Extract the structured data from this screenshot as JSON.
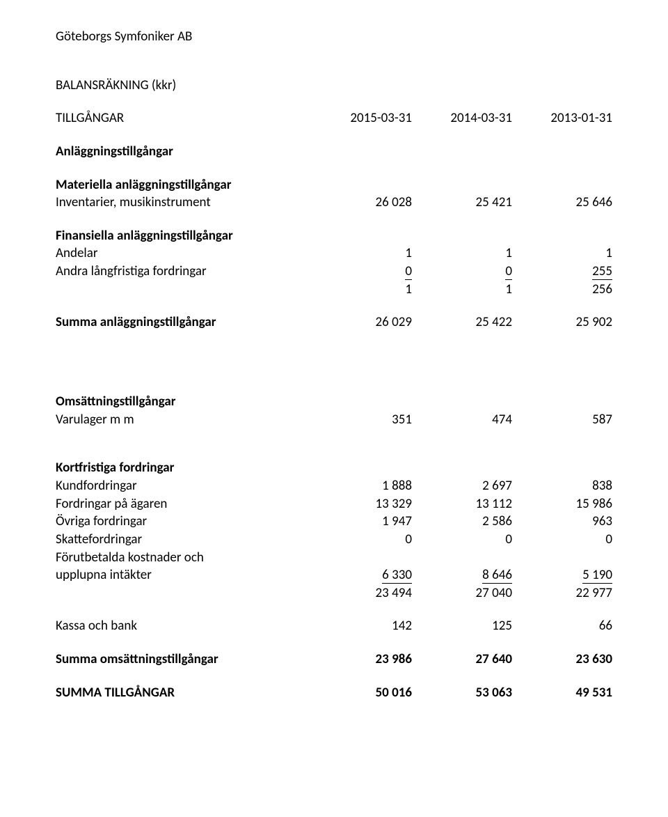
{
  "company": "Göteborgs Symfoniker AB",
  "report_title": "BALANSRÄKNING (kkr)",
  "headers": {
    "section": "TILLGÅNGAR",
    "col1": "2015-03-31",
    "col2": "2014-03-31",
    "col3": "2013-01-31"
  },
  "anlaggning": {
    "heading": "Anläggningstillgångar",
    "materiella_heading": "Materiella anläggningstillgångar",
    "inventarier_label": "Inventarier, musikinstrument",
    "inventarier": {
      "c1": "26 028",
      "c2": "25 421",
      "c3": "25 646"
    },
    "finansiella_heading": "Finansiella anläggningstillgångar",
    "andelar_label": "Andelar",
    "andelar": {
      "c1": "1",
      "c2": "1",
      "c3": "1"
    },
    "andra_label": "Andra långfristiga fordringar",
    "andra": {
      "c1": "0",
      "c2": "0",
      "c3": "255"
    },
    "fin_sum": {
      "c1": "1",
      "c2": "1",
      "c3": "256"
    },
    "summa_label": "Summa anläggningstillgångar",
    "summa": {
      "c1": "26 029",
      "c2": "25 422",
      "c3": "25 902"
    }
  },
  "omsattning": {
    "heading": "Omsättningstillgångar",
    "varulager_label": "Varulager m m",
    "varulager": {
      "c1": "351",
      "c2": "474",
      "c3": "587"
    }
  },
  "kortfristiga": {
    "heading": "Kortfristiga fordringar",
    "kund_label": "Kundfordringar",
    "kund": {
      "c1": "1 888",
      "c2": "2 697",
      "c3": "838"
    },
    "agaren_label": "Fordringar på ägaren",
    "agaren": {
      "c1": "13 329",
      "c2": "13 112",
      "c3": "15 986"
    },
    "ovriga_label": "Övriga fordringar",
    "ovriga": {
      "c1": "1 947",
      "c2": "2 586",
      "c3": "963"
    },
    "skatte_label": "Skattefordringar",
    "skatte": {
      "c1": "0",
      "c2": "0",
      "c3": "0"
    },
    "forut_label1": "Förutbetalda kostnader och",
    "forut_label2": "upplupna intäkter",
    "forut": {
      "c1": "6 330",
      "c2": "8 646",
      "c3": "5 190"
    },
    "sum": {
      "c1": "23 494",
      "c2": "27 040",
      "c3": "22 977"
    }
  },
  "kassa": {
    "label": "Kassa och bank",
    "vals": {
      "c1": "142",
      "c2": "125",
      "c3": "66"
    }
  },
  "summa_oms": {
    "label": "Summa omsättningstillgångar",
    "vals": {
      "c1": "23 986",
      "c2": "27 640",
      "c3": "23 630"
    }
  },
  "summa_till": {
    "label": "SUMMA TILLGÅNGAR",
    "vals": {
      "c1": "50 016",
      "c2": "53 063",
      "c3": "49 531"
    }
  }
}
